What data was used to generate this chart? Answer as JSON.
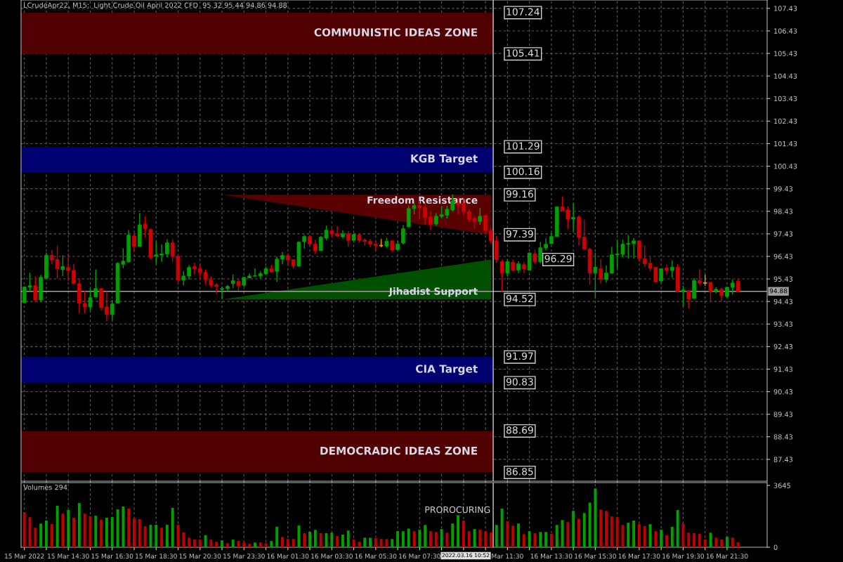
{
  "chart_data": [
    {
      "type": "candlestick",
      "title": "LCrudeApr22, M15:  Light Crude Oil April 2022 CFD  95.32 95.44 94.86 94.88",
      "categories": [
        null,
        null,
        null,
        null,
        null,
        null,
        null,
        null,
        null,
        null,
        null,
        null,
        null,
        null,
        null,
        null,
        null,
        null,
        null,
        null,
        null,
        null,
        null,
        null,
        null,
        null,
        null,
        null,
        null,
        null,
        null,
        null,
        null,
        null,
        null,
        null,
        null,
        null,
        null,
        null,
        null,
        null,
        null,
        null,
        null,
        null,
        null,
        null,
        null,
        null,
        null,
        null,
        null,
        null,
        null,
        null,
        null,
        null,
        null,
        null,
        null,
        null,
        null,
        null,
        null,
        null,
        null,
        null,
        null,
        null,
        null,
        null,
        null,
        null,
        null,
        null,
        null,
        null,
        null,
        null,
        null,
        null,
        null,
        null,
        null,
        null,
        null,
        null,
        null,
        null,
        null,
        null,
        null,
        null,
        null,
        null,
        null,
        null,
        null,
        null,
        null,
        null,
        null,
        null,
        null,
        null,
        null,
        null,
        null,
        null,
        null,
        null,
        null,
        null,
        null,
        null,
        null,
        null,
        null,
        null,
        null,
        null,
        null,
        null,
        null,
        null,
        null,
        null,
        null,
        null,
        null
      ],
      "series": [
        {
          "type": "area",
          "name": "Freedom Resistance",
          "color": "#5a0000",
          "values": [
            null,
            null,
            null,
            null,
            null,
            null,
            null,
            null,
            null,
            null,
            null,
            null,
            null,
            null,
            null,
            null,
            null,
            null,
            null,
            null,
            null,
            null,
            null,
            null,
            null,
            null,
            null,
            null,
            null,
            null,
            null,
            null,
            null,
            null,
            null,
            null,
            99.16,
            null,
            null,
            null,
            null,
            null,
            null,
            null,
            null,
            null,
            null,
            null,
            null,
            null,
            null,
            null,
            null,
            null,
            null,
            null,
            null,
            null,
            null,
            null,
            null,
            null,
            null,
            null,
            null,
            null,
            null,
            null,
            null,
            null,
            null,
            null,
            null,
            null,
            null,
            null,
            null,
            null,
            null,
            null,
            null,
            null,
            null,
            null,
            null,
            97.39,
            null,
            null,
            null,
            null,
            null,
            null,
            null,
            null,
            null,
            null,
            null,
            null,
            null,
            null,
            null,
            null,
            null,
            null,
            null,
            null,
            null,
            null,
            null,
            null,
            null,
            null,
            null,
            null,
            null,
            null,
            null,
            null,
            null,
            null,
            null,
            null,
            null,
            null,
            null,
            null,
            null,
            null,
            null,
            null,
            null
          ]
        },
        {
          "type": "area",
          "name": "Jihadist Support",
          "color": "#005000",
          "values": [
            null,
            null,
            null,
            null,
            null,
            null,
            null,
            null,
            null,
            null,
            null,
            null,
            null,
            null,
            null,
            null,
            null,
            null,
            null,
            null,
            null,
            null,
            null,
            null,
            null,
            null,
            null,
            null,
            null,
            null,
            null,
            null,
            null,
            null,
            null,
            null,
            94.52,
            null,
            null,
            null,
            null,
            null,
            null,
            null,
            null,
            null,
            null,
            null,
            null,
            null,
            null,
            null,
            null,
            null,
            null,
            null,
            null,
            null,
            null,
            null,
            null,
            null,
            null,
            null,
            null,
            null,
            null,
            null,
            null,
            null,
            null,
            null,
            null,
            null,
            null,
            null,
            null,
            null,
            null,
            null,
            null,
            null,
            null,
            null,
            null,
            96.29,
            null,
            null,
            null,
            null,
            null,
            null,
            null,
            null,
            null,
            null,
            null,
            null,
            null,
            null,
            null,
            null,
            null,
            null,
            null,
            null,
            null,
            null,
            null,
            null,
            null,
            null,
            null,
            null,
            null,
            null,
            null,
            null,
            null,
            null,
            null,
            null,
            null,
            null,
            null,
            null,
            null,
            null,
            null,
            null,
            null
          ]
        }
      ],
      "annotations": [
        "107.24",
        "105.41",
        "101.29",
        "100.16",
        "99.16",
        "97.39",
        "96.29",
        "94.52",
        "91.97",
        "90.83",
        "88.69",
        "86.85"
      ],
      "ohlc": [
        [
          94.38,
          95.1,
          94.35,
          95.07
        ],
        [
          95.07,
          95.7,
          94.84,
          95.13
        ],
        [
          95.13,
          95.54,
          94.4,
          94.5
        ],
        [
          94.5,
          95.61,
          94.4,
          95.5
        ],
        [
          95.46,
          96.6,
          95.46,
          96.48
        ],
        [
          96.48,
          96.71,
          96.08,
          96.27
        ],
        [
          96.29,
          96.91,
          95.44,
          95.88
        ],
        [
          95.84,
          96.48,
          95.56,
          95.98
        ],
        [
          95.94,
          96.54,
          95.34,
          95.8
        ],
        [
          95.81,
          96.1,
          95.22,
          95.22
        ],
        [
          95.22,
          95.44,
          93.9,
          94.35
        ],
        [
          94.34,
          94.92,
          93.9,
          94.19
        ],
        [
          94.19,
          95.02,
          94.01,
          94.6
        ],
        [
          94.63,
          95.85,
          94.63,
          95.0
        ],
        [
          95.0,
          95.0,
          94.03,
          94.16
        ],
        [
          94.19,
          94.89,
          93.54,
          93.85
        ],
        [
          93.85,
          94.5,
          93.59,
          94.32
        ],
        [
          94.35,
          96.17,
          94.35,
          96.12
        ],
        [
          96.08,
          96.79,
          95.9,
          96.22
        ],
        [
          96.19,
          97.6,
          96.15,
          97.37
        ],
        [
          97.34,
          97.45,
          96.64,
          96.87
        ],
        [
          96.87,
          98.35,
          96.87,
          97.83
        ],
        [
          97.87,
          98.21,
          97.27,
          97.66
        ],
        [
          97.62,
          97.68,
          96.29,
          96.39
        ],
        [
          96.43,
          97.1,
          96.12,
          96.5
        ],
        [
          96.49,
          96.97,
          96.19,
          96.54
        ],
        [
          96.53,
          97.19,
          96.39,
          97.03
        ],
        [
          97.03,
          97.19,
          96.19,
          96.43
        ],
        [
          96.43,
          96.54,
          95.25,
          95.38
        ],
        [
          95.38,
          95.77,
          95.15,
          95.56
        ],
        [
          95.56,
          96.04,
          95.4,
          95.94
        ],
        [
          95.98,
          96.15,
          95.62,
          95.88
        ],
        [
          95.88,
          96.12,
          95.42,
          95.71
        ],
        [
          95.72,
          95.85,
          95.19,
          95.4
        ],
        [
          95.38,
          95.54,
          95.05,
          95.15
        ],
        [
          95.17,
          95.25,
          94.77,
          95.09
        ],
        [
          94.96,
          95.1,
          94.53,
          95.0
        ],
        [
          95.0,
          95.17,
          94.88,
          95.1
        ],
        [
          95.22,
          95.63,
          95.02,
          95.35
        ],
        [
          95.32,
          95.44,
          94.9,
          95.13
        ],
        [
          95.15,
          95.5,
          95.09,
          95.5
        ],
        [
          95.48,
          95.67,
          95.46,
          95.56
        ],
        [
          95.55,
          95.9,
          95.54,
          95.57
        ],
        [
          95.56,
          95.77,
          95.44,
          95.67
        ],
        [
          95.65,
          95.98,
          95.65,
          95.88
        ],
        [
          95.88,
          96.06,
          95.71,
          95.75
        ],
        [
          95.77,
          96.43,
          95.3,
          96.31
        ],
        [
          96.31,
          96.62,
          96.08,
          96.47
        ],
        [
          96.47,
          96.57,
          96.0,
          96.27
        ],
        [
          96.29,
          96.29,
          95.88,
          96.0
        ],
        [
          96.0,
          97.1,
          95.96,
          97.06
        ],
        [
          97.08,
          97.38,
          96.77,
          97.31
        ],
        [
          97.31,
          97.38,
          96.91,
          96.98
        ],
        [
          96.98,
          97.16,
          96.55,
          96.69
        ],
        [
          96.69,
          97.33,
          96.69,
          97.28
        ],
        [
          97.25,
          97.79,
          97.14,
          97.59
        ],
        [
          97.56,
          97.66,
          97.28,
          97.43
        ],
        [
          97.43,
          97.77,
          97.31,
          97.33
        ],
        [
          97.3,
          97.59,
          97.23,
          97.43
        ],
        [
          97.43,
          97.56,
          96.86,
          97.14
        ],
        [
          97.14,
          97.45,
          97.12,
          97.4
        ],
        [
          97.38,
          97.46,
          97.04,
          97.14
        ],
        [
          97.16,
          97.23,
          96.91,
          97.09
        ],
        [
          97.1,
          97.2,
          96.83,
          96.97
        ],
        [
          96.98,
          97.1,
          96.69,
          96.91
        ],
        [
          96.91,
          97.2,
          96.83,
          96.91
        ],
        [
          96.89,
          97.25,
          96.81,
          97.1
        ],
        [
          97.12,
          97.12,
          96.62,
          96.71
        ],
        [
          96.73,
          97.12,
          96.71,
          96.98
        ],
        [
          97.02,
          97.82,
          96.96,
          97.66
        ],
        [
          97.74,
          98.68,
          97.72,
          98.55
        ],
        [
          98.55,
          98.87,
          98.3,
          98.68
        ],
        [
          98.68,
          98.89,
          98.06,
          98.58
        ],
        [
          98.6,
          98.78,
          97.85,
          98.14
        ],
        [
          98.18,
          98.42,
          97.58,
          97.85
        ],
        [
          97.87,
          98.35,
          97.79,
          98.21
        ],
        [
          98.2,
          98.66,
          98.11,
          98.28
        ],
        [
          98.26,
          98.68,
          98.11,
          98.52
        ],
        [
          98.49,
          99.18,
          98.42,
          98.89
        ],
        [
          98.8,
          99.0,
          98.28,
          98.7
        ],
        [
          98.78,
          99.01,
          98.26,
          98.41
        ],
        [
          98.42,
          98.52,
          97.95,
          98.06
        ],
        [
          98.11,
          98.24,
          97.66,
          97.97
        ],
        [
          97.98,
          98.58,
          97.83,
          98.21
        ],
        [
          98.24,
          98.24,
          97.41,
          97.58
        ],
        [
          97.56,
          97.74,
          96.99,
          97.12
        ],
        [
          97.12,
          97.33,
          96.14,
          96.29
        ],
        [
          96.19,
          96.29,
          94.84,
          95.69
        ],
        [
          95.69,
          96.29,
          95.54,
          96.19
        ],
        [
          96.17,
          96.29,
          95.77,
          95.82
        ],
        [
          95.82,
          96.21,
          95.69,
          96.1
        ],
        [
          96.06,
          96.19,
          95.69,
          95.88
        ],
        [
          95.82,
          96.62,
          95.82,
          96.58
        ],
        [
          96.55,
          96.73,
          96.1,
          96.19
        ],
        [
          96.19,
          97.07,
          96.13,
          96.81
        ],
        [
          96.81,
          97.23,
          96.69,
          96.97
        ],
        [
          97.0,
          97.47,
          97.0,
          97.31
        ],
        [
          97.31,
          98.63,
          97.31,
          98.63
        ],
        [
          98.63,
          99.09,
          98.45,
          98.45
        ],
        [
          98.49,
          98.66,
          97.64,
          98.08
        ],
        [
          98.08,
          98.78,
          97.54,
          98.16
        ],
        [
          98.18,
          98.24,
          96.91,
          97.27
        ],
        [
          97.28,
          98.06,
          96.75,
          96.75
        ],
        [
          96.75,
          96.81,
          95.17,
          95.69
        ],
        [
          95.69,
          96.6,
          94.58,
          95.95
        ],
        [
          95.88,
          96.31,
          95.23,
          95.41
        ],
        [
          95.41,
          96.03,
          95.27,
          95.69
        ],
        [
          95.69,
          96.86,
          95.65,
          96.5
        ],
        [
          96.5,
          97.17,
          95.9,
          96.54
        ],
        [
          96.52,
          97.17,
          96.39,
          96.97
        ],
        [
          96.97,
          97.38,
          96.33,
          97.0
        ],
        [
          97.0,
          97.25,
          96.33,
          97.12
        ],
        [
          97.12,
          97.12,
          96.19,
          96.33
        ],
        [
          96.33,
          96.93,
          95.96,
          96.1
        ],
        [
          96.12,
          96.42,
          95.77,
          95.9
        ],
        [
          95.95,
          95.95,
          95.3,
          95.3
        ],
        [
          95.34,
          95.88,
          95.27,
          95.88
        ],
        [
          95.91,
          96.06,
          95.61,
          95.81
        ],
        [
          95.81,
          96.26,
          95.48,
          95.95
        ],
        [
          95.95,
          96.1,
          94.84,
          94.87
        ],
        [
          94.87,
          95.12,
          94.23,
          94.94
        ],
        [
          94.92,
          94.92,
          94.13,
          94.53
        ],
        [
          94.57,
          95.46,
          94.57,
          95.36
        ],
        [
          95.36,
          95.85,
          95.17,
          95.25
        ],
        [
          95.25,
          95.61,
          95.13,
          95.25
        ],
        [
          95.28,
          95.28,
          94.44,
          94.87
        ],
        [
          94.87,
          95.06,
          94.78,
          94.97
        ],
        [
          94.97,
          95.04,
          94.44,
          94.7
        ],
        [
          94.65,
          95.06,
          94.61,
          95.06
        ],
        [
          95.06,
          95.41,
          94.75,
          95.25
        ],
        [
          95.32,
          95.44,
          94.86,
          94.88
        ]
      ],
      "colors": [
        "#00a000",
        "#00a000",
        "#d00000",
        "#00a000",
        "#00a000",
        "#d00000",
        "#d00000",
        "#00a000",
        "#d00000",
        "#d00000",
        "#d00000",
        "#d00000",
        "#00a000",
        "#00a000",
        "#d00000",
        "#d00000",
        "#00a000",
        "#00a000",
        "#00a000",
        "#00a000",
        "#d00000",
        "#00a000",
        "#d00000",
        "#d00000",
        "#00a000",
        "#00a000",
        "#00a000",
        "#d00000",
        "#d00000",
        "#00a000",
        "#00a000",
        "#d00000",
        "#d00000",
        "#d00000",
        "#d00000",
        "#d00000",
        "#00a000",
        "#00a000",
        "#00a000",
        "#d00000",
        "#00a000",
        "#00a000",
        "#00a000",
        "#00a000",
        "#00a000",
        "#d00000",
        "#00a000",
        "#00a000",
        "#d00000",
        "#d00000",
        "#00a000",
        "#00a000",
        "#d00000",
        "#d00000",
        "#00a000",
        "#00a000",
        "#d00000",
        "#d00000",
        "#00a000",
        "#d00000",
        "#00a000",
        "#d00000",
        "#d00000",
        "#d00000",
        "#d00000",
        "#ff9020",
        "#00a000",
        "#d00000",
        "#00a000",
        "#00a000",
        "#00a000",
        "#00a000",
        "#d00000",
        "#d00000",
        "#d00000",
        "#00a000",
        "#00a000",
        "#00a000",
        "#00a000",
        "#d00000",
        "#d00000",
        "#d00000",
        "#d00000",
        "#00a000",
        "#d00000",
        "#d00000",
        "#d00000",
        "#d00000",
        "#00a000",
        "#d00000",
        "#00a000",
        "#d00000",
        "#00a000",
        "#d00000",
        "#00a000",
        "#00a000",
        "#00a000",
        "#00a000",
        "#d00000",
        "#d00000",
        "#00a000",
        "#d00000",
        "#d00000",
        "#d00000",
        "#00a000",
        "#d00000",
        "#00a000",
        "#00a000",
        "#00a000",
        "#00a000",
        "#00a000",
        "#00a000",
        "#d00000",
        "#d00000",
        "#d00000",
        "#d00000",
        "#00a000",
        "#d00000",
        "#00a000",
        "#d00000",
        "#00a000",
        "#d00000",
        "#00a000",
        "#d00000",
        "#ff9020",
        "#d00000",
        "#00a000",
        "#d00000",
        "#00a000",
        "#00a000",
        "#d00000"
      ],
      "ylim": [
        86.46,
        107.8
      ],
      "yticks": [
        87.43,
        88.43,
        89.43,
        90.43,
        91.43,
        92.43,
        93.43,
        94.43,
        95.43,
        96.43,
        97.43,
        98.43,
        99.43,
        100.43,
        101.43,
        102.43,
        103.43,
        104.43,
        105.43,
        106.43,
        107.43
      ],
      "grid": true,
      "tick_labels": "y",
      "bands": [
        {
          "axis": "y",
          "from": 105.41,
          "to": 107.24,
          "label": "COMMUNISTIC IDEAS ZONE",
          "color": "#500000"
        },
        {
          "axis": "y",
          "from": 100.16,
          "to": 101.29,
          "label": "KGB Target",
          "color": "#000070"
        },
        {
          "axis": "y",
          "from": 90.83,
          "to": 91.97,
          "label": "CIA Target",
          "color": "#000070"
        },
        {
          "axis": "y",
          "from": 86.85,
          "to": 88.69,
          "label": "DEMOCRADIC IDEAS ZONE",
          "color": "#500000"
        }
      ],
      "ref_lines": [
        {
          "axis": "y",
          "value": 94.88,
          "label": "94.88",
          "color": "#a0a0a0"
        }
      ]
    },
    {
      "type": "bar",
      "title": "Volumes 294",
      "categories": [
        "15 Mar 2022",
        null,
        null,
        null,
        null,
        null,
        null,
        null,
        "15 Mar 14:30",
        null,
        null,
        null,
        null,
        null,
        null,
        null,
        "15 Mar 16:30",
        null,
        null,
        null,
        null,
        null,
        null,
        null,
        "15 Mar 18:30",
        null,
        null,
        null,
        null,
        null,
        null,
        null,
        "15 Mar 20:30",
        null,
        null,
        null,
        null,
        null,
        null,
        null,
        "15 Mar 23:30",
        null,
        null,
        null,
        null,
        null,
        null,
        null,
        "16 Mar 01:30",
        null,
        null,
        null,
        null,
        null,
        null,
        null,
        "16 Mar 03:30",
        null,
        null,
        null,
        null,
        null,
        null,
        null,
        "16 Mar 05:30",
        null,
        null,
        null,
        null,
        null,
        null,
        null,
        "16 Mar 07:30",
        null,
        null,
        null,
        null,
        null,
        null,
        null,
        null,
        null,
        null,
        null,
        null,
        null,
        null,
        null,
        "Mar 11:30",
        null,
        null,
        null,
        null,
        null,
        null,
        null,
        "16 Mar 13:30",
        null,
        null,
        null,
        null,
        null,
        null,
        null,
        "16 Mar 15:30",
        null,
        null,
        null,
        null,
        null,
        null,
        null,
        "16 Mar 17:30",
        null,
        null,
        null,
        null,
        null,
        null,
        null,
        "16 Mar 19:30",
        null,
        null,
        null,
        null,
        null,
        null,
        null,
        "16 Mar 21:30",
        null,
        null
      ],
      "values": [
        2067,
        1772,
        1153,
        1392,
        1575,
        1364,
        2446,
        1982,
        2193,
        1743,
        2601,
        1982,
        1828,
        1856,
        1617,
        1743,
        1786,
        2236,
        2404,
        2278,
        1701,
        1659,
        1237,
        1322,
        1322,
        1153,
        1322,
        2320,
        1322,
        872,
        562,
        450,
        450,
        703,
        450,
        323,
        408,
        239,
        450,
        366,
        281,
        197,
        281,
        281,
        239,
        366,
        1209,
        605,
        492,
        492,
        1279,
        830,
        914,
        1026,
        830,
        830,
        858,
        661,
        745,
        984,
        450,
        323,
        562,
        562,
        534,
        492,
        484,
        484,
        943,
        943,
        1101,
        943,
        1029,
        1315,
        943,
        900,
        1072,
        857,
        1401,
        1889,
        1573,
        943,
        1072,
        1029,
        943,
        871,
        1315,
        2276,
        1530,
        1273,
        1401,
        771,
        943,
        828,
        900,
        900,
        785,
        1315,
        1602,
        1487,
        2146,
        1688,
        2016,
        2634,
        3465,
        2218,
        2146,
        1816,
        1773,
        1315,
        1444,
        1573,
        1358,
        1244,
        1358,
        943,
        1029,
        699,
        1201,
        2190,
        1401,
        857,
        828,
        785,
        456,
        857,
        570,
        456,
        613,
        570,
        294
      ],
      "colors": [
        "#c00000",
        "#c00000",
        "#c00000",
        "#00a000",
        "#00a000",
        "#c00000",
        "#00a000",
        "#c00000",
        "#00a000",
        "#c00000",
        "#00a000",
        "#c00000",
        "#c00000",
        "#00a000",
        "#c00000",
        "#00a000",
        "#00a000",
        "#00a000",
        "#00a000",
        "#c00000",
        "#c00000",
        "#c00000",
        "#c00000",
        "#00a000",
        "#00a000",
        "#c00000",
        "#00a000",
        "#00a000",
        "#c00000",
        "#c00000",
        "#c00000",
        "#c00000",
        "#c00000",
        "#00a000",
        "#c00000",
        "#c00000",
        "#00a000",
        "#c00000",
        "#00a000",
        "#c00000",
        "#c00000",
        "#c00000",
        "#00a000",
        "#c00000",
        "#c00000",
        "#00a000",
        "#00a000",
        "#c00000",
        "#c00000",
        "#c00000",
        "#00a000",
        "#c00000",
        "#00a000",
        "#00a000",
        "#c00000",
        "#00a000",
        "#00a000",
        "#c00000",
        "#00a000",
        "#00a000",
        "#c00000",
        "#c00000",
        "#00a000",
        "#00a000",
        "#c00000",
        "#c00000",
        "#c00000",
        "#00a000",
        "#00a000",
        "#00a000",
        "#00a000",
        "#c00000",
        "#00a000",
        "#00a000",
        "#c00000",
        "#c00000",
        "#00a000",
        "#c00000",
        "#00a000",
        "#00a000",
        "#c00000",
        "#c00000",
        "#00a000",
        "#c00000",
        "#c00000",
        "#c00000",
        "#00a000",
        "#00a000",
        "#c00000",
        "#c00000",
        "#00a000",
        "#c00000",
        "#00a000",
        "#c00000",
        "#00a000",
        "#00a000",
        "#c00000",
        "#00a000",
        "#00a000",
        "#c00000",
        "#00a000",
        "#c00000",
        "#00a000",
        "#00a000",
        "#00a000",
        "#c00000",
        "#c00000",
        "#c00000",
        "#c00000",
        "#c00000",
        "#00a000",
        "#00a000",
        "#c00000",
        "#c00000",
        "#00a000",
        "#c00000",
        "#00a000",
        "#c00000",
        "#00a000",
        "#00a000",
        "#c00000",
        "#c00000",
        "#c00000",
        "#c00000",
        "#c00000",
        "#00a000",
        "#c00000",
        "#c00000",
        "#00a000",
        "#c00000",
        "#c00000"
      ],
      "ylim": [
        0,
        3810
      ],
      "yticks": [
        0,
        3645
      ],
      "grid": "x",
      "annotations": [
        "PROROCURING",
        "2022.03.16 10:52"
      ]
    }
  ]
}
